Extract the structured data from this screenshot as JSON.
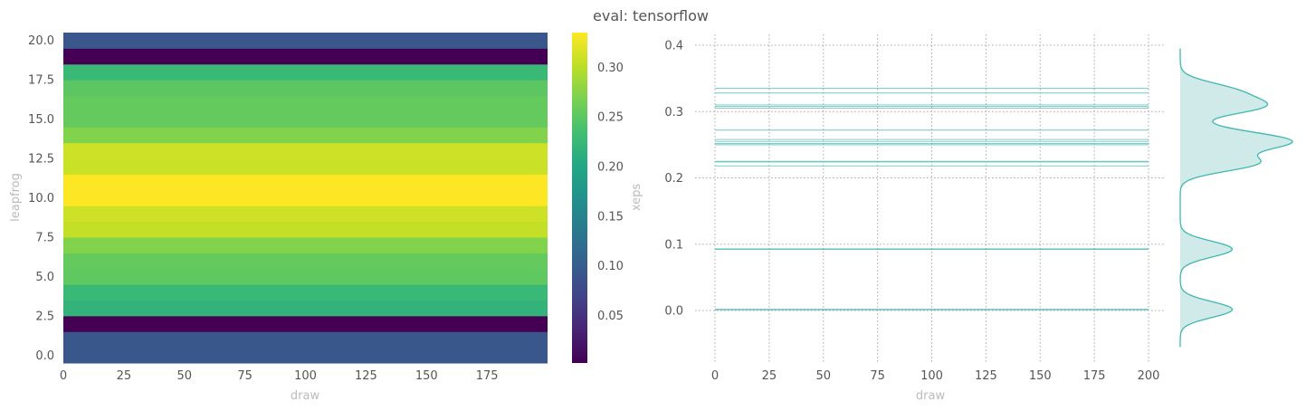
{
  "title": "eval: tensorflow",
  "chart_data": [
    {
      "type": "heatmap",
      "xlabel": "draw",
      "ylabel": "leapfrog",
      "colorbar_label": "xeps",
      "colormap": "viridis",
      "n_draws": 200,
      "x_ticks": [
        0,
        25,
        50,
        75,
        100,
        125,
        150,
        175
      ],
      "y_ticks": [
        "0.0",
        "2.5",
        "5.0",
        "7.5",
        "10.0",
        "12.5",
        "15.0",
        "17.5",
        "20.0"
      ],
      "colorbar_range": [
        0.002,
        0.335
      ],
      "colorbar_ticks": [
        "0.05",
        "0.10",
        "0.15",
        "0.20",
        "0.25",
        "0.30"
      ],
      "rows": [
        {
          "leapfrog": 0,
          "xeps": 0.092
        },
        {
          "leapfrog": 1,
          "xeps": 0.092
        },
        {
          "leapfrog": 2,
          "xeps": 0.001
        },
        {
          "leapfrog": 3,
          "xeps": 0.218
        },
        {
          "leapfrog": 4,
          "xeps": 0.225
        },
        {
          "leapfrog": 5,
          "xeps": 0.252
        },
        {
          "leapfrog": 6,
          "xeps": 0.255
        },
        {
          "leapfrog": 7,
          "xeps": 0.272
        },
        {
          "leapfrog": 8,
          "xeps": 0.305
        },
        {
          "leapfrog": 9,
          "xeps": 0.31
        },
        {
          "leapfrog": 10,
          "xeps": 0.335
        },
        {
          "leapfrog": 11,
          "xeps": 0.335
        },
        {
          "leapfrog": 12,
          "xeps": 0.308
        },
        {
          "leapfrog": 13,
          "xeps": 0.31
        },
        {
          "leapfrog": 14,
          "xeps": 0.272
        },
        {
          "leapfrog": 15,
          "xeps": 0.255
        },
        {
          "leapfrog": 16,
          "xeps": 0.255
        },
        {
          "leapfrog": 17,
          "xeps": 0.25
        },
        {
          "leapfrog": 18,
          "xeps": 0.225
        },
        {
          "leapfrog": 19,
          "xeps": 0.002
        },
        {
          "leapfrog": 20,
          "xeps": 0.092
        }
      ]
    },
    {
      "type": "line",
      "xlabel": "draw",
      "ylabel": "",
      "xlim": [
        0,
        200
      ],
      "ylim": [
        -0.075,
        0.41
      ],
      "x_ticks": [
        0,
        25,
        50,
        75,
        100,
        125,
        150,
        175,
        200
      ],
      "y_ticks": [
        "0.0",
        "0.1",
        "0.2",
        "0.3",
        "0.4"
      ],
      "grid": true,
      "color": "#3fb8af",
      "series_values": [
        0.001,
        0.002,
        0.092,
        0.093,
        0.218,
        0.224,
        0.225,
        0.25,
        0.252,
        0.255,
        0.258,
        0.272,
        0.305,
        0.308,
        0.31,
        0.328,
        0.335
      ]
    },
    {
      "type": "area",
      "orientation": "vertical-kde",
      "color": "#3fb8af",
      "fill": "#cfeae9",
      "y_range": [
        -0.055,
        0.395
      ]
    }
  ]
}
